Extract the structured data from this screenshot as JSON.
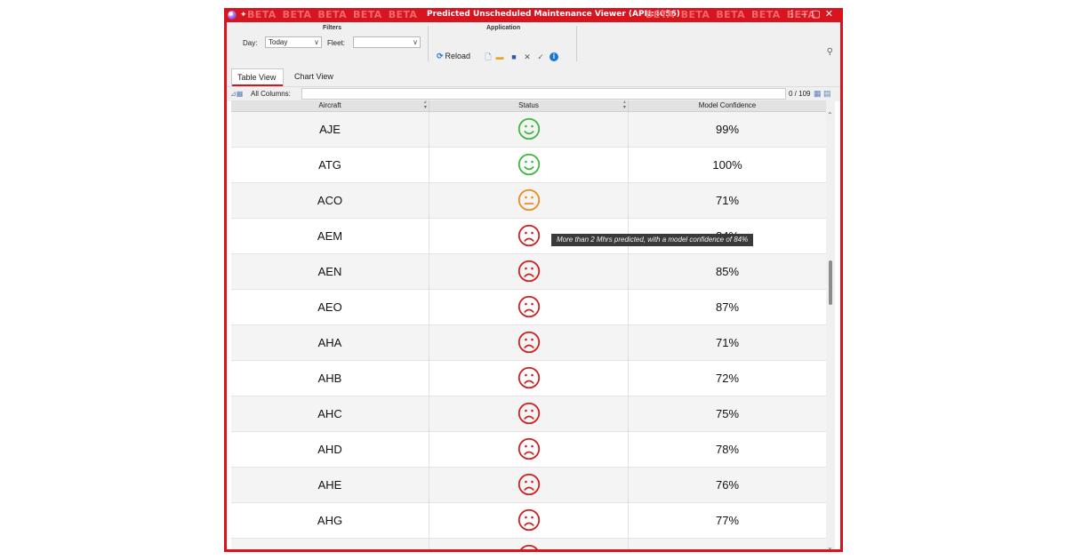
{
  "window": {
    "title": "Predicted Unscheduled Maintenance Viewer (APN:4056)",
    "beta": "BETA",
    "accent": "#d8141f"
  },
  "ribbon": {
    "filters_label": "Filters",
    "day_label": "Day:",
    "day_value": "Today",
    "fleet_label": "Fleet:",
    "fleet_value": "",
    "application_label": "Application",
    "reload_label": "Reload",
    "icons": [
      "new-file-icon",
      "open-folder-icon",
      "save-icon",
      "tools-icon",
      "check-icon",
      "info-icon"
    ]
  },
  "tabs": [
    {
      "label": "Table View",
      "active": true
    },
    {
      "label": "Chart View",
      "active": false
    }
  ],
  "search": {
    "label": "All Columns:",
    "value": "",
    "count": "0 / 109"
  },
  "table": {
    "columns": [
      "Aircraft",
      "Status",
      "Model Confidence"
    ],
    "rows": [
      {
        "aircraft": "AJE",
        "status": "happy",
        "confidence": "99%"
      },
      {
        "aircraft": "ATG",
        "status": "happy",
        "confidence": "100%"
      },
      {
        "aircraft": "ACO",
        "status": "neutral",
        "confidence": "71%"
      },
      {
        "aircraft": "AEM",
        "status": "sad",
        "confidence": "84%"
      },
      {
        "aircraft": "AEN",
        "status": "sad",
        "confidence": "85%"
      },
      {
        "aircraft": "AEO",
        "status": "sad",
        "confidence": "87%"
      },
      {
        "aircraft": "AHA",
        "status": "sad",
        "confidence": "71%"
      },
      {
        "aircraft": "AHB",
        "status": "sad",
        "confidence": "72%"
      },
      {
        "aircraft": "AHC",
        "status": "sad",
        "confidence": "75%"
      },
      {
        "aircraft": "AHD",
        "status": "sad",
        "confidence": "78%"
      },
      {
        "aircraft": "AHE",
        "status": "sad",
        "confidence": "76%"
      },
      {
        "aircraft": "AHG",
        "status": "sad",
        "confidence": "77%"
      },
      {
        "aircraft": "",
        "status": "sad",
        "confidence": ""
      }
    ]
  },
  "status_colors": {
    "happy": "#3cb93c",
    "neutral": "#f08a1c",
    "sad": "#d21f1f"
  },
  "tooltip": "More than 2 Mhrs predicted, with a model confidence of 84%"
}
